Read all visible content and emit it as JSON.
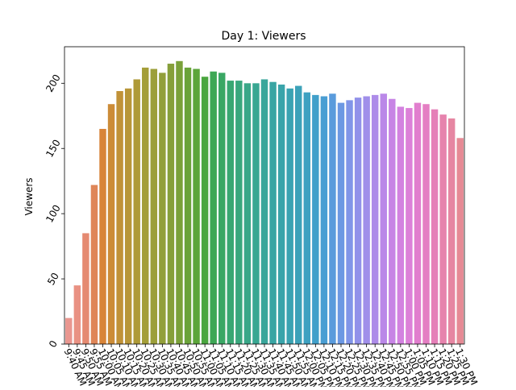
{
  "chart_data": {
    "type": "bar",
    "title": "Day 1: Viewers",
    "xlabel": "",
    "ylabel": "Viewers",
    "ylim": [
      0,
      228
    ],
    "yticks": [
      0,
      50,
      100,
      150,
      200
    ],
    "grid": false,
    "legend": "none",
    "categories": [
      "9:40 AM",
      "9:45 AM",
      "9:50 AM",
      "9:55 AM",
      "10:00 AM",
      "10:05 AM",
      "10:10 AM",
      "10:15 AM",
      "10:20 AM",
      "10:25 AM",
      "10:30 AM",
      "10:35 AM",
      "10:40 AM",
      "10:45 AM",
      "10:50 AM",
      "10:55 AM",
      "11:00 AM",
      "11:05 AM",
      "11:10 AM",
      "11:15 AM",
      "11:20 AM",
      "11:25 AM",
      "11:30 AM",
      "11:35 AM",
      "11:40 AM",
      "11:45 AM",
      "11:50 AM",
      "11:55 AM",
      "12:00 PM",
      "12:05 PM",
      "12:10 PM",
      "12:15 PM",
      "12:20 PM",
      "12:25 PM",
      "12:30 PM",
      "12:35 PM",
      "12:40 PM",
      "12:45 PM",
      "12:50 PM",
      "12:55 PM",
      "1:00 PM",
      "1:05 PM",
      "1:10 PM",
      "1:15 PM",
      "1:20 PM",
      "1:25 PM",
      "1:30 PM"
    ],
    "values": [
      20,
      45,
      85,
      122,
      165,
      184,
      194,
      196,
      203,
      212,
      211,
      208,
      215,
      217,
      212,
      211,
      205,
      209,
      208,
      202,
      202,
      200,
      200,
      203,
      201,
      199,
      196,
      198,
      193,
      191,
      190,
      192,
      185,
      187,
      189,
      190,
      191,
      192,
      188,
      182,
      181,
      185,
      184,
      180,
      176,
      173,
      158
    ],
    "colors": [
      "#e9968f",
      "#e99183",
      "#e58a71",
      "#df8658",
      "#d88438",
      "#cc8c38",
      "#c19238",
      "#b89638",
      "#ae9a38",
      "#a49e38",
      "#9c9f3a",
      "#929f3a",
      "#869f3a",
      "#7aa13a",
      "#6aa33a",
      "#5ba53a",
      "#4aa63f",
      "#3ea755",
      "#3aa764",
      "#39a772",
      "#39a77d",
      "#39a788",
      "#39a792",
      "#39a69b",
      "#39a5a3",
      "#3aa4aa",
      "#3ba3b2",
      "#3ca2b9",
      "#3ea1c1",
      "#41a0ca",
      "#4a9ed3",
      "#5a9bdc",
      "#6c98e3",
      "#8195e8",
      "#9191ea",
      "#a08fea",
      "#ad8ce9",
      "#ba88e8",
      "#c784e5",
      "#d382e0",
      "#dc80d8",
      "#e17ece",
      "#e47ec3",
      "#e57fb8",
      "#e683ad",
      "#e686a2",
      "#e68a95"
    ]
  }
}
